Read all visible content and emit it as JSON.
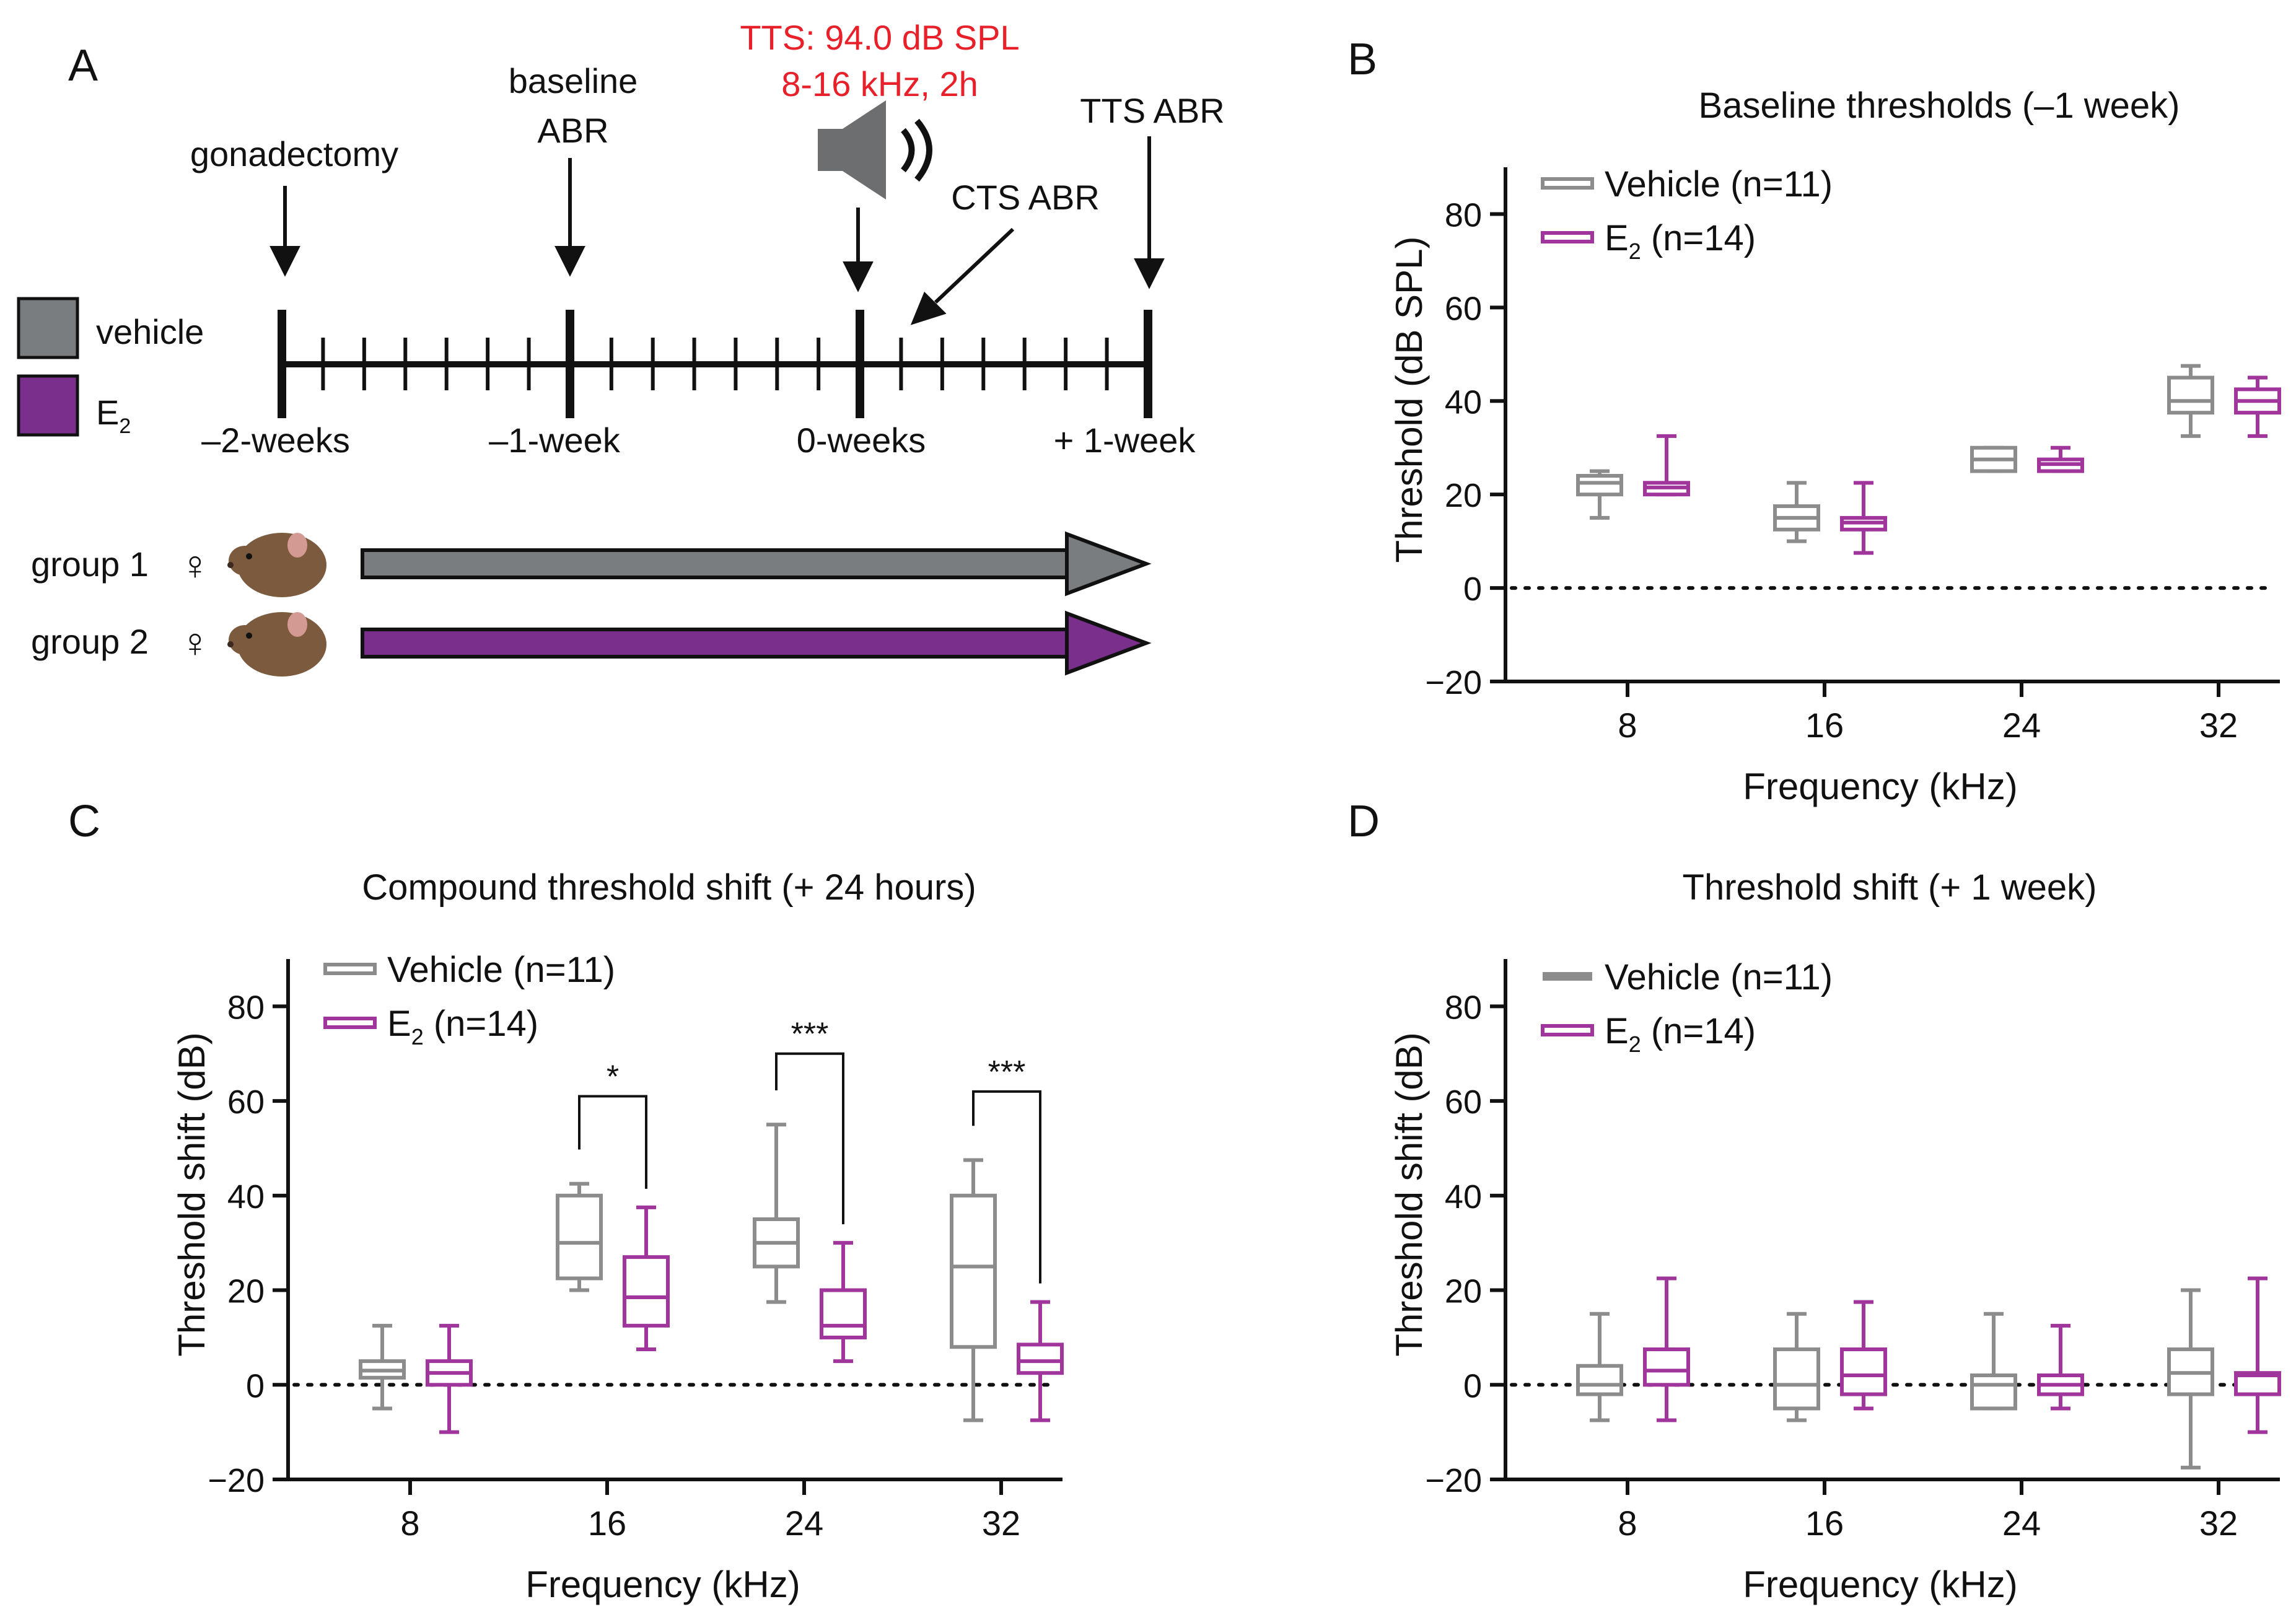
{
  "colors": {
    "vehicle_box": "#8c8c8c",
    "e2_box": "#a0359c",
    "vehicle_fill": "#7a7d80",
    "e2_fill": "#7b2f8c",
    "tts_red": "#e8202a",
    "axis": "#111111"
  },
  "panel_a": {
    "letter": "A",
    "tts_line1": "TTS: 94.0 dB SPL",
    "tts_line2": "8-16 kHz, 2h",
    "events": {
      "gonadectomy": "gonadectomy",
      "baseline_1": "baseline",
      "baseline_2": "ABR",
      "cts": "CTS ABR",
      "tts": "TTS ABR"
    },
    "ticks": [
      "–2-weeks",
      "–1-week",
      "0-weeks",
      "+ 1-week"
    ],
    "legend": {
      "vehicle": "vehicle",
      "e2": "E",
      "e2_sub": "2"
    },
    "groups": [
      {
        "label": "group 1",
        "symbol": "♀"
      },
      {
        "label": "group 2",
        "symbol": "♀"
      }
    ],
    "icons": [
      "speaker-icon",
      "mouse-icon"
    ]
  },
  "chart_data": [
    {
      "panel": "B",
      "type": "boxplot",
      "title": "Baseline thresholds (–1 week)",
      "xlabel": "Frequency (kHz)",
      "ylabel": "Threshold (dB SPL)",
      "categories": [
        "8",
        "16",
        "24",
        "32"
      ],
      "ylim": [
        -20,
        90
      ],
      "yticks": [
        -20,
        0,
        20,
        40,
        60,
        80
      ],
      "zero_line": "dotted",
      "legend": [
        {
          "name": "Vehicle",
          "suffix": "(n=11)",
          "style": "open",
          "color": "#8c8c8c"
        },
        {
          "name": "E",
          "sub": "2",
          "suffix": "(n=14)",
          "style": "open",
          "color": "#a0359c"
        }
      ],
      "series": [
        {
          "name": "Vehicle",
          "boxes": [
            {
              "min": 15,
              "q1": 20,
              "median": 22.5,
              "q3": 24,
              "max": 25
            },
            {
              "min": 10,
              "q1": 12.5,
              "median": 15,
              "q3": 17.5,
              "max": 22.5
            },
            {
              "min": 25,
              "q1": 25,
              "median": 27.5,
              "q3": 30,
              "max": 30
            },
            {
              "min": 32.5,
              "q1": 37.5,
              "median": 40,
              "q3": 45,
              "max": 47.5
            }
          ]
        },
        {
          "name": "E2",
          "boxes": [
            {
              "min": 20,
              "q1": 20,
              "median": 21.5,
              "q3": 22.5,
              "max": 32.5
            },
            {
              "min": 7.5,
              "q1": 12.5,
              "median": 14,
              "q3": 15,
              "max": 22.5
            },
            {
              "min": 25,
              "q1": 25,
              "median": 26.5,
              "q3": 27.5,
              "max": 30
            },
            {
              "min": 32.5,
              "q1": 37.5,
              "median": 40,
              "q3": 42.5,
              "max": 45
            }
          ]
        }
      ],
      "significance": []
    },
    {
      "panel": "C",
      "type": "boxplot",
      "title": "Compound threshold shift (+ 24 hours)",
      "xlabel": "Frequency (kHz)",
      "ylabel": "Threshold shift (dB)",
      "categories": [
        "8",
        "16",
        "24",
        "32"
      ],
      "ylim": [
        -20,
        90
      ],
      "yticks": [
        -20,
        0,
        20,
        40,
        60,
        80
      ],
      "zero_line": "dotted",
      "legend": [
        {
          "name": "Vehicle",
          "suffix": "(n=11)",
          "style": "open",
          "color": "#8c8c8c"
        },
        {
          "name": "E",
          "sub": "2",
          "suffix": "(n=14)",
          "style": "open",
          "color": "#a0359c"
        }
      ],
      "series": [
        {
          "name": "Vehicle",
          "boxes": [
            {
              "min": -5,
              "q1": 1.5,
              "median": 3,
              "q3": 5,
              "max": 12.5
            },
            {
              "min": 20,
              "q1": 22.5,
              "median": 30,
              "q3": 40,
              "max": 42.5
            },
            {
              "min": 17.5,
              "q1": 25,
              "median": 30,
              "q3": 35,
              "max": 55
            },
            {
              "min": -7.5,
              "q1": 8,
              "median": 25,
              "q3": 40,
              "max": 47.5
            }
          ]
        },
        {
          "name": "E2",
          "boxes": [
            {
              "min": -10,
              "q1": 0,
              "median": 2.5,
              "q3": 5,
              "max": 12.5
            },
            {
              "min": 7.5,
              "q1": 12.5,
              "median": 18.5,
              "q3": 27,
              "max": 37.5
            },
            {
              "min": 5,
              "q1": 10,
              "median": 12.5,
              "q3": 20,
              "max": 30
            },
            {
              "min": -7.5,
              "q1": 2.5,
              "median": 5,
              "q3": 8.5,
              "max": 17.5
            }
          ]
        }
      ],
      "significance": [
        {
          "category": "16",
          "label": "*",
          "bracket_y": 61
        },
        {
          "category": "24",
          "label": "***",
          "bracket_y": 70
        },
        {
          "category": "32",
          "label": "***",
          "bracket_y": 62
        }
      ]
    },
    {
      "panel": "D",
      "type": "boxplot",
      "title": "Threshold shift (+ 1 week)",
      "xlabel": "Frequency (kHz)",
      "ylabel": "Threshold shift (dB)",
      "categories": [
        "8",
        "16",
        "24",
        "32"
      ],
      "ylim": [
        -20,
        90
      ],
      "yticks": [
        -20,
        0,
        20,
        40,
        60,
        80
      ],
      "zero_line": "dotted",
      "legend": [
        {
          "name": "Vehicle",
          "suffix": "(n=11)",
          "style": "solid",
          "color": "#8c8c8c"
        },
        {
          "name": "E",
          "sub": "2",
          "suffix": "(n=14)",
          "style": "open",
          "color": "#a0359c"
        }
      ],
      "series": [
        {
          "name": "Vehicle",
          "boxes": [
            {
              "min": -7.5,
              "q1": -2,
              "median": 0,
              "q3": 4,
              "max": 15
            },
            {
              "min": -7.5,
              "q1": -5,
              "median": 0,
              "q3": 7.5,
              "max": 15
            },
            {
              "min": -5,
              "q1": -5,
              "median": 0,
              "q3": 2,
              "max": 15
            },
            {
              "min": -17.5,
              "q1": -2,
              "median": 2.5,
              "q3": 7.5,
              "max": 20
            }
          ]
        },
        {
          "name": "E2",
          "boxes": [
            {
              "min": -7.5,
              "q1": 0,
              "median": 3,
              "q3": 7.5,
              "max": 22.5
            },
            {
              "min": -5,
              "q1": -2,
              "median": 2,
              "q3": 7.5,
              "max": 17.5
            },
            {
              "min": -5,
              "q1": -2,
              "median": 0,
              "q3": 2,
              "max": 12.5
            },
            {
              "min": -10,
              "q1": -2,
              "median": 2,
              "q3": 2.5,
              "max": 22.5
            }
          ]
        }
      ],
      "significance": []
    }
  ]
}
